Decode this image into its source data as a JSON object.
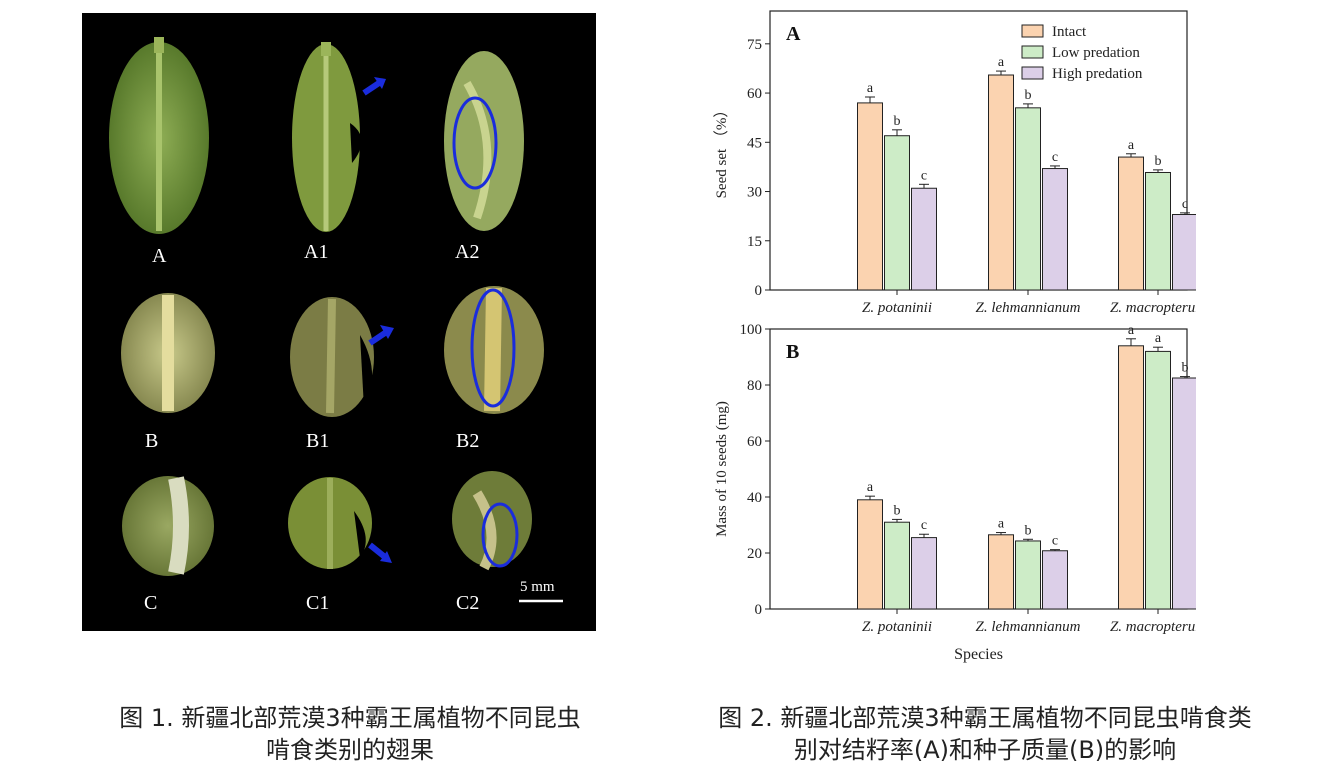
{
  "figure1": {
    "labels": [
      "A",
      "A1",
      "A2",
      "B",
      "B1",
      "B2",
      "C",
      "C1",
      "C2"
    ],
    "scale_bar": "5 mm",
    "caption_line1": "图 1. 新疆北部荒漠3种霸王属植物不同昆虫",
    "caption_line2": "啃食类别的翅果"
  },
  "figure2": {
    "caption_line1": "图 2. 新疆北部荒漠3种霸王属植物不同昆虫啃食类",
    "caption_line2": "别对结籽率(A)和种子质量(B)的影响"
  },
  "colors": {
    "intact": "#fbd3b0",
    "low": "#cdecc7",
    "high": "#dccfe8"
  },
  "chart_data": [
    {
      "panel_label": "A",
      "type": "bar",
      "categories": [
        "Z. potaninii",
        "Z. lehmannianum",
        "Z. macropterum"
      ],
      "series": [
        {
          "name": "Intact",
          "values": [
            57,
            65.5,
            40.5
          ],
          "errors": [
            1.8,
            1.2,
            1.0
          ],
          "letters": [
            "a",
            "a",
            "a"
          ]
        },
        {
          "name": "Low predation",
          "values": [
            47,
            55.5,
            35.8
          ],
          "errors": [
            1.8,
            1.2,
            0.8
          ],
          "letters": [
            "b",
            "b",
            "b"
          ]
        },
        {
          "name": "High predation",
          "values": [
            31,
            37,
            23
          ],
          "errors": [
            1.2,
            0.8,
            0.5
          ],
          "letters": [
            "c",
            "c",
            "c"
          ]
        }
      ],
      "ylabel": "Seed set （%）",
      "xlabel": "",
      "ylim": [
        0,
        85
      ],
      "yticks": [
        0,
        15,
        30,
        45,
        60,
        75
      ],
      "legend": "top-right"
    },
    {
      "panel_label": "B",
      "type": "bar",
      "categories": [
        "Z. potaninii",
        "Z. lehmannianum",
        "Z. macropterum"
      ],
      "series": [
        {
          "name": "Intact",
          "values": [
            39,
            26.5,
            94
          ],
          "errors": [
            1.3,
            0.8,
            2.5
          ],
          "letters": [
            "a",
            "a",
            "a"
          ]
        },
        {
          "name": "Low predation",
          "values": [
            31,
            24.3,
            92
          ],
          "errors": [
            1.0,
            0.6,
            1.5
          ],
          "letters": [
            "b",
            "b",
            "a"
          ]
        },
        {
          "name": "High predation",
          "values": [
            25.5,
            20.8,
            82.5
          ],
          "errors": [
            1.2,
            0.4,
            0.5
          ],
          "letters": [
            "c",
            "c",
            "b"
          ]
        }
      ],
      "ylabel": "Mass of 10 seeds  (mg)",
      "xlabel": "Species",
      "ylim": [
        0,
        100
      ],
      "yticks": [
        0,
        20,
        40,
        60,
        80,
        100
      ],
      "legend": "none"
    }
  ]
}
